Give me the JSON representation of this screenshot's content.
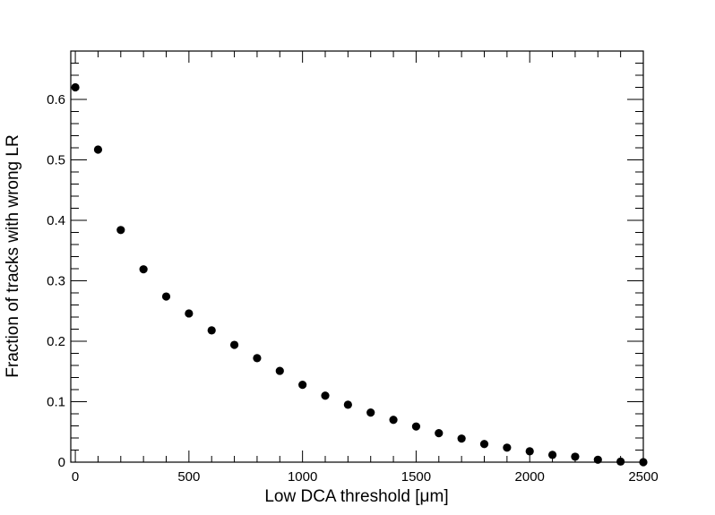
{
  "chart_data": {
    "type": "scatter",
    "xlabel": "Low DCA threshold [μm]",
    "ylabel": "Fraction of tracks with wrong LR",
    "xlim": [
      -20,
      2500
    ],
    "ylim": [
      0,
      0.68
    ],
    "grid": false,
    "x_ticks": [
      0,
      500,
      1000,
      1500,
      2000,
      2500
    ],
    "x_tick_labels": [
      "0",
      "500",
      "1000",
      "1500",
      "2000",
      "2500"
    ],
    "y_ticks": [
      0,
      0.1,
      0.2,
      0.3,
      0.4,
      0.5,
      0.6
    ],
    "y_tick_labels": [
      "0",
      "0.1",
      "0.2",
      "0.3",
      "0.4",
      "0.5",
      "0.6"
    ],
    "marker_color": "#000000",
    "series": [
      {
        "x": [
          0,
          100,
          200,
          300,
          400,
          500,
          600,
          700,
          800,
          900,
          1000,
          1100,
          1200,
          1300,
          1400,
          1500,
          1600,
          1700,
          1800,
          1900,
          2000,
          2100,
          2200,
          2300,
          2400,
          2500
        ],
        "y": [
          0.62,
          0.517,
          0.384,
          0.319,
          0.274,
          0.246,
          0.218,
          0.194,
          0.172,
          0.151,
          0.128,
          0.11,
          0.095,
          0.082,
          0.07,
          0.059,
          0.048,
          0.039,
          0.03,
          0.024,
          0.018,
          0.012,
          0.009,
          0.004,
          0.001,
          0.0
        ]
      }
    ]
  }
}
